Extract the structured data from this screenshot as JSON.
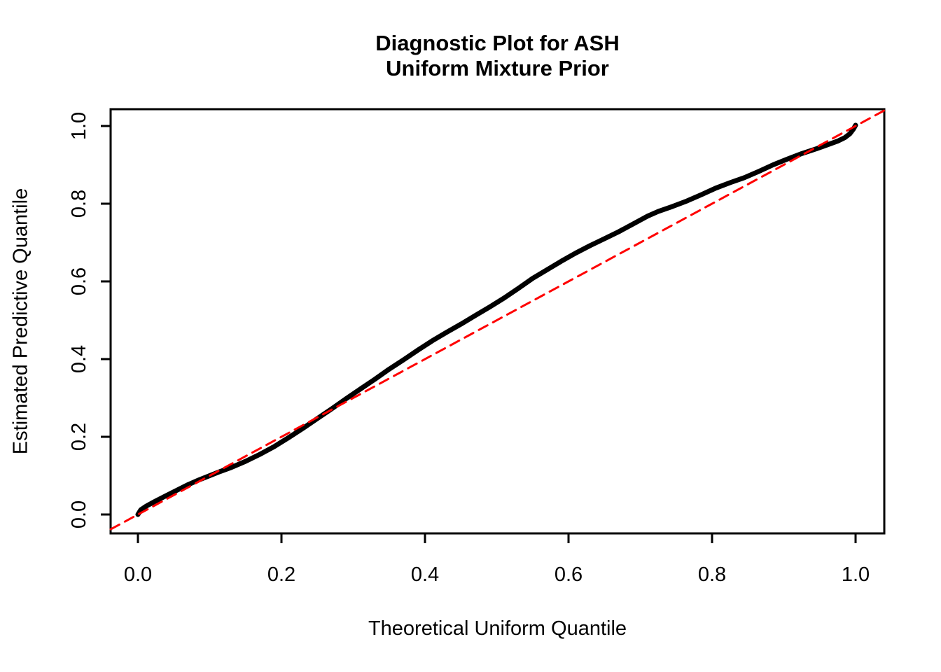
{
  "figure": {
    "background": "#ffffff",
    "title_lines": [
      "Diagnostic Plot for ASH",
      "Uniform Mixture Prior"
    ]
  },
  "chart_data": {
    "type": "line",
    "title": "Diagnostic Plot for ASH\nUniform Mixture Prior",
    "xlabel": "Theoretical Uniform Quantile",
    "ylabel": "Estimated Predictive Quantile",
    "xlim": [
      -0.04,
      1.04
    ],
    "ylim": [
      -0.04,
      1.04
    ],
    "grid": false,
    "legend": null,
    "x_ticks": {
      "values": [
        0.0,
        0.2,
        0.4,
        0.6,
        0.8,
        1.0
      ],
      "labels": [
        "0.0",
        "0.2",
        "0.4",
        "0.6",
        "0.8",
        "1.0"
      ]
    },
    "y_ticks": {
      "values": [
        0.0,
        0.2,
        0.4,
        0.6,
        0.8,
        1.0
      ],
      "labels": [
        "0.0",
        "0.2",
        "0.4",
        "0.6",
        "0.8",
        "1.0"
      ]
    },
    "series": [
      {
        "name": "estimated-predictive-quantile-curve",
        "color": "#000000",
        "line_width": 7,
        "line_style": "solid",
        "points": [
          [
            0.0,
            0.0
          ],
          [
            0.004,
            0.012
          ],
          [
            0.012,
            0.022
          ],
          [
            0.025,
            0.035
          ],
          [
            0.04,
            0.049
          ],
          [
            0.055,
            0.063
          ],
          [
            0.07,
            0.077
          ],
          [
            0.085,
            0.089
          ],
          [
            0.1,
            0.1
          ],
          [
            0.115,
            0.111
          ],
          [
            0.13,
            0.121
          ],
          [
            0.15,
            0.137
          ],
          [
            0.17,
            0.155
          ],
          [
            0.19,
            0.175
          ],
          [
            0.21,
            0.198
          ],
          [
            0.23,
            0.222
          ],
          [
            0.25,
            0.247
          ],
          [
            0.27,
            0.272
          ],
          [
            0.29,
            0.298
          ],
          [
            0.31,
            0.323
          ],
          [
            0.33,
            0.348
          ],
          [
            0.35,
            0.374
          ],
          [
            0.37,
            0.398
          ],
          [
            0.39,
            0.423
          ],
          [
            0.41,
            0.447
          ],
          [
            0.43,
            0.469
          ],
          [
            0.45,
            0.49
          ],
          [
            0.47,
            0.512
          ],
          [
            0.49,
            0.534
          ],
          [
            0.51,
            0.557
          ],
          [
            0.53,
            0.582
          ],
          [
            0.55,
            0.608
          ],
          [
            0.57,
            0.63
          ],
          [
            0.59,
            0.652
          ],
          [
            0.61,
            0.673
          ],
          [
            0.63,
            0.692
          ],
          [
            0.65,
            0.71
          ],
          [
            0.67,
            0.728
          ],
          [
            0.69,
            0.748
          ],
          [
            0.71,
            0.768
          ],
          [
            0.725,
            0.78
          ],
          [
            0.745,
            0.793
          ],
          [
            0.765,
            0.807
          ],
          [
            0.785,
            0.823
          ],
          [
            0.805,
            0.84
          ],
          [
            0.825,
            0.854
          ],
          [
            0.845,
            0.867
          ],
          [
            0.865,
            0.883
          ],
          [
            0.885,
            0.9
          ],
          [
            0.905,
            0.915
          ],
          [
            0.925,
            0.929
          ],
          [
            0.945,
            0.941
          ],
          [
            0.96,
            0.951
          ],
          [
            0.975,
            0.961
          ],
          [
            0.985,
            0.97
          ],
          [
            0.992,
            0.98
          ],
          [
            0.997,
            0.992
          ],
          [
            1.0,
            1.002
          ]
        ]
      },
      {
        "name": "identity-reference-line",
        "color": "#ff0000",
        "line_width": 3,
        "line_style": "dashed",
        "dash": [
          14,
          9
        ],
        "points": [
          [
            -0.038,
            -0.038
          ],
          [
            1.043,
            1.043
          ]
        ]
      }
    ]
  }
}
